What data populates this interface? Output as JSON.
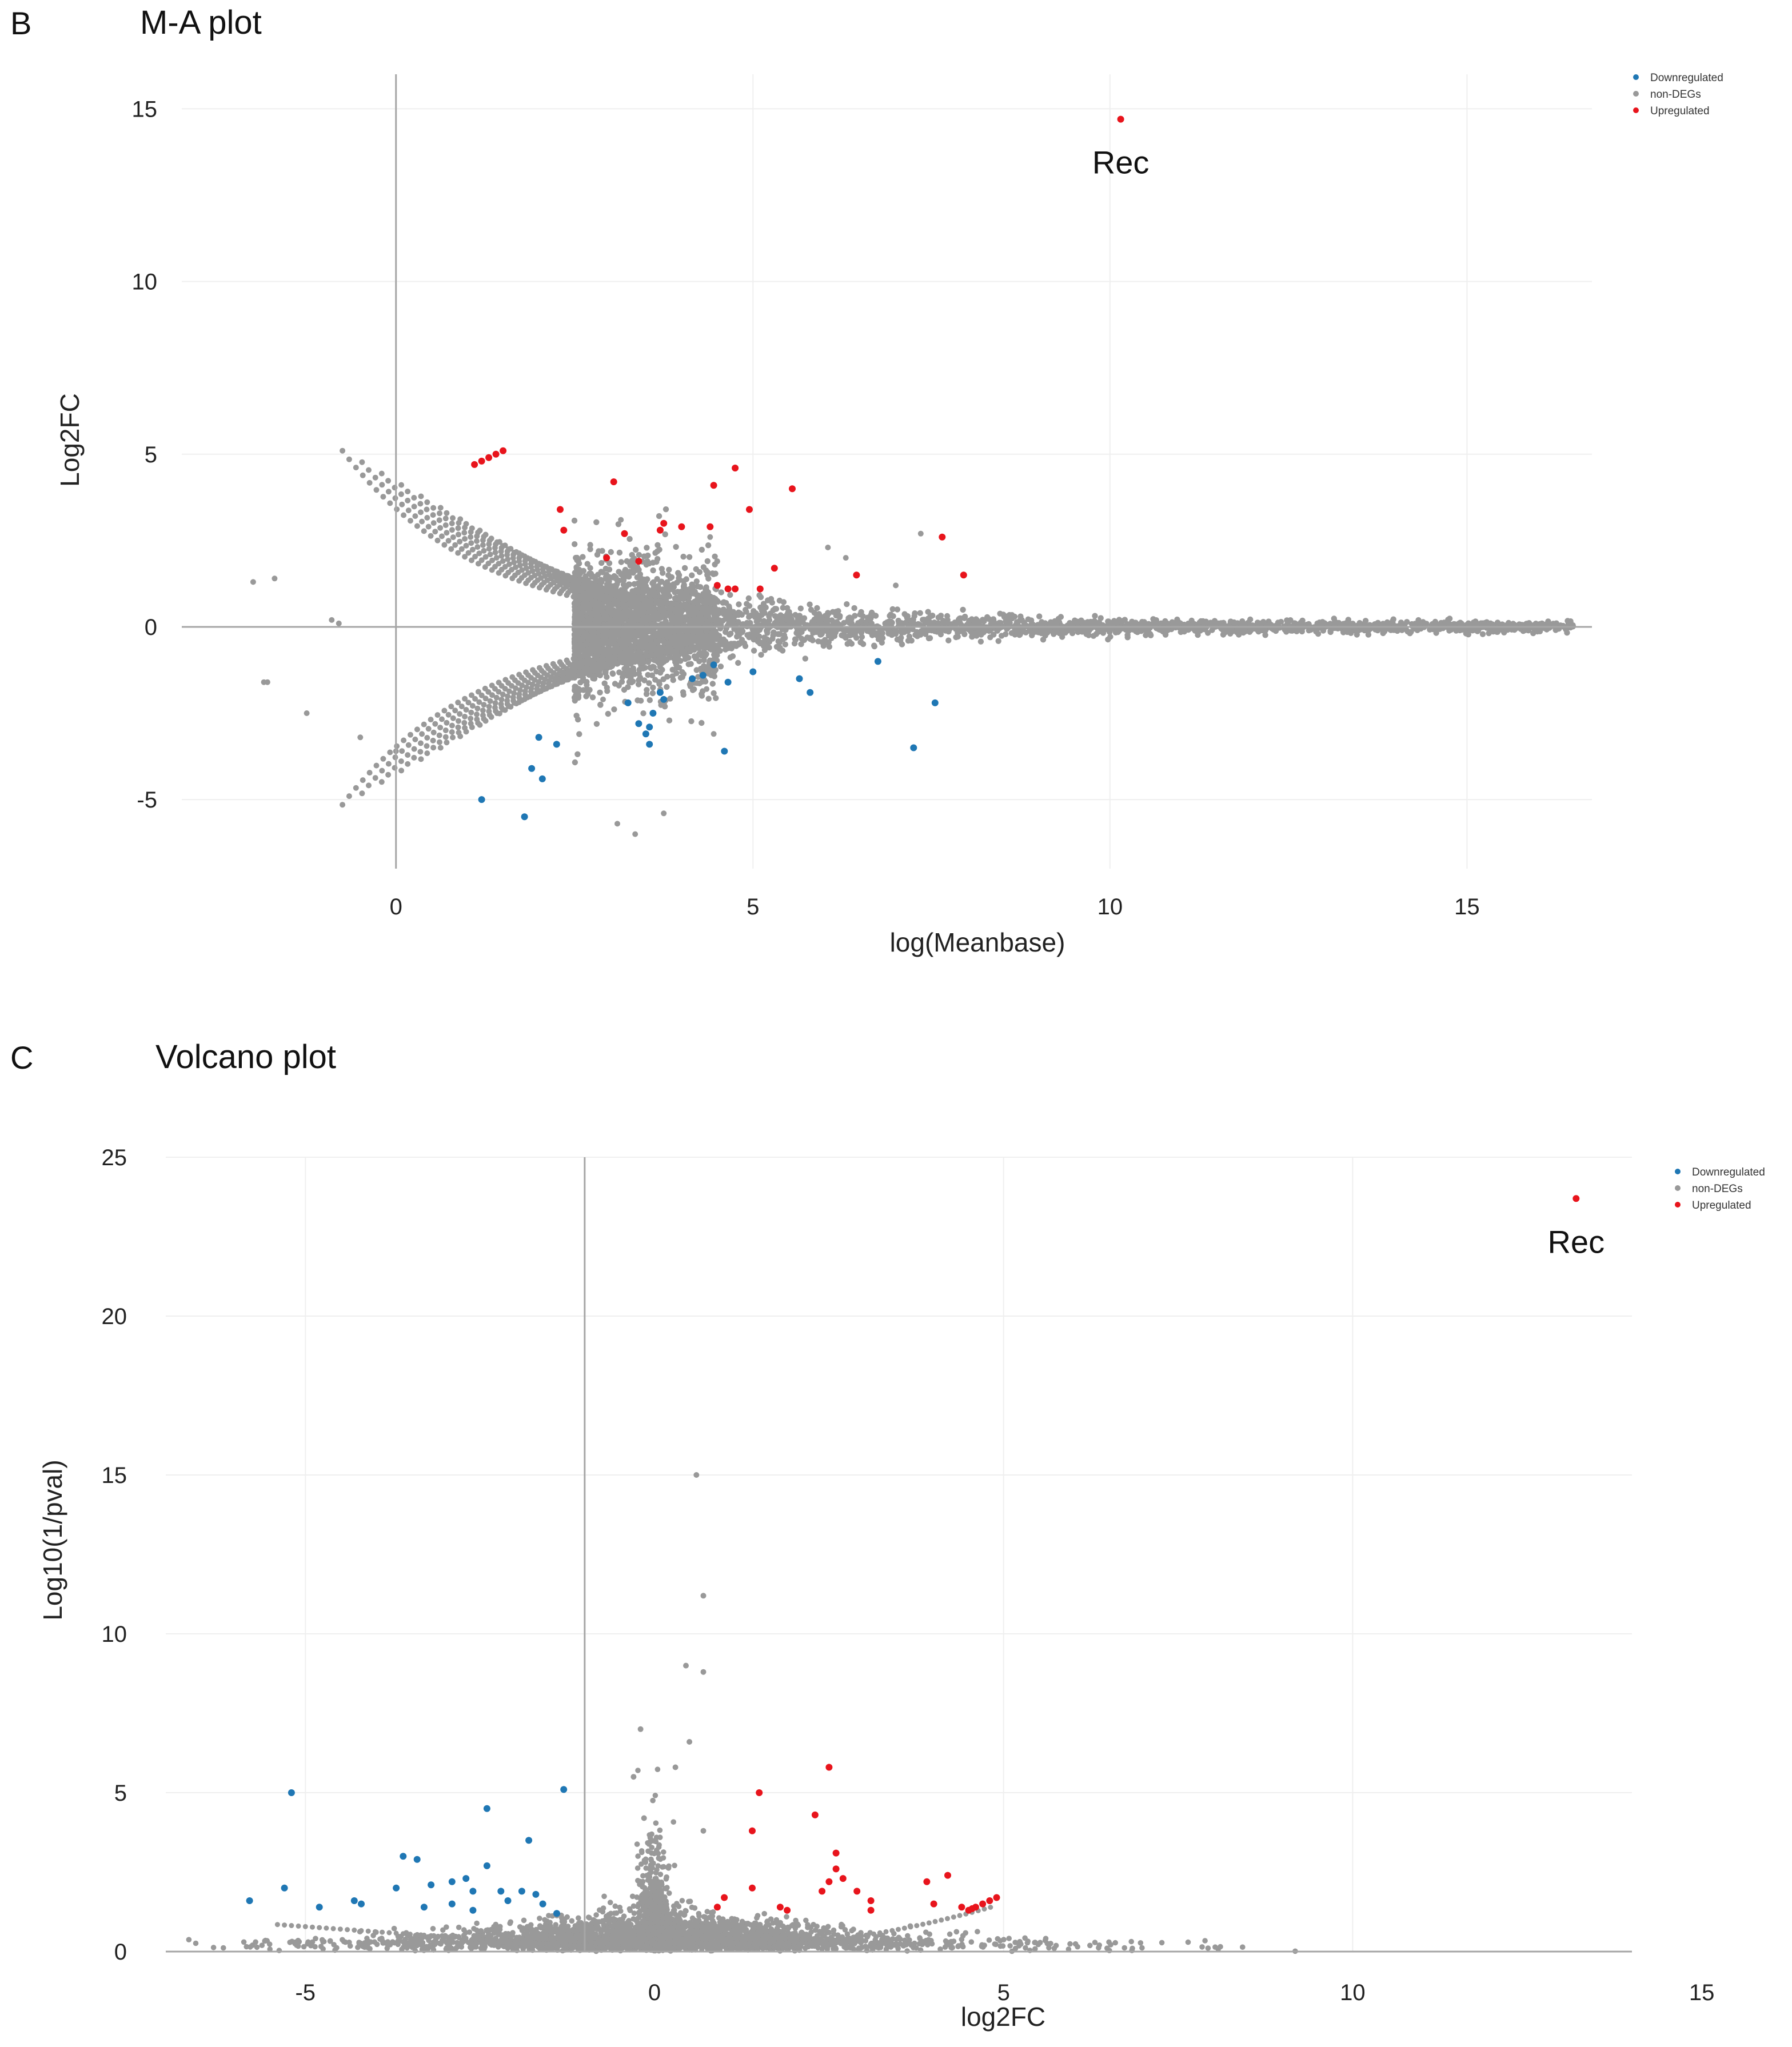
{
  "panels": {
    "b": {
      "letter": "B",
      "title": "M-A plot"
    },
    "c": {
      "letter": "C",
      "title": "Volcano plot"
    }
  },
  "colors": {
    "downregulated": "#1f77b4",
    "non_degs": "#999999",
    "upregulated": "#e8141c",
    "grid": "#efefef",
    "axis": "#a6a6a6"
  },
  "chart_data": [
    {
      "id": "ma",
      "type": "scatter",
      "title": "M-A plot",
      "xlabel": "log(Meanbase)",
      "ylabel": "Log2FC",
      "xlim": [
        -6,
        33.5
      ],
      "ylim": [
        -7,
        16
      ],
      "xticks": [
        0,
        10,
        20,
        30
      ],
      "xtick_labels": [
        "0",
        "5",
        "10",
        "15"
      ],
      "yticks": [
        -5,
        0,
        5,
        10,
        15
      ],
      "ytick_labels": [
        "-5",
        "0",
        "5",
        "10",
        "15"
      ],
      "grid": true,
      "legend": {
        "position": "top-right",
        "entries": [
          "Downregulated",
          "non-DEGs",
          "Upregulated"
        ]
      },
      "annotations": [
        {
          "text": "Rec",
          "x": 20.3,
          "y": 14.7
        }
      ],
      "series": [
        {
          "name": "Upregulated",
          "color_key": "upregulated",
          "points": [
            [
              20.3,
              14.7
            ],
            [
              2.4,
              4.8
            ],
            [
              2.6,
              4.9
            ],
            [
              2.8,
              5.0
            ],
            [
              3.0,
              5.1
            ],
            [
              2.2,
              4.7
            ],
            [
              4.6,
              3.4
            ],
            [
              4.7,
              2.8
            ],
            [
              6.1,
              4.2
            ],
            [
              5.9,
              2.0
            ],
            [
              6.4,
              2.7
            ],
            [
              7.5,
              3.0
            ],
            [
              7.4,
              2.8
            ],
            [
              8.0,
              2.9
            ],
            [
              8.9,
              4.1
            ],
            [
              9.5,
              4.6
            ],
            [
              9.0,
              1.2
            ],
            [
              8.8,
              2.9
            ],
            [
              9.9,
              3.4
            ],
            [
              9.3,
              1.1
            ],
            [
              9.5,
              1.1
            ],
            [
              10.6,
              1.7
            ],
            [
              11.1,
              4.0
            ],
            [
              10.2,
              1.1
            ],
            [
              12.9,
              1.5
            ],
            [
              15.3,
              2.6
            ],
            [
              15.9,
              1.5
            ],
            [
              6.8,
              1.9
            ]
          ]
        },
        {
          "name": "Downregulated",
          "color_key": "downregulated",
          "points": [
            [
              2.4,
              -5.0
            ],
            [
              3.6,
              -5.5
            ],
            [
              3.8,
              -4.1
            ],
            [
              4.1,
              -4.4
            ],
            [
              4.0,
              -3.2
            ],
            [
              4.5,
              -3.4
            ],
            [
              6.5,
              -2.2
            ],
            [
              6.8,
              -2.8
            ],
            [
              7.0,
              -3.1
            ],
            [
              7.1,
              -2.9
            ],
            [
              7.2,
              -2.5
            ],
            [
              7.1,
              -3.4
            ],
            [
              7.5,
              -2.1
            ],
            [
              7.4,
              -1.9
            ],
            [
              8.3,
              -1.5
            ],
            [
              8.6,
              -1.4
            ],
            [
              8.9,
              -1.1
            ],
            [
              9.3,
              -1.6
            ],
            [
              9.2,
              -3.6
            ],
            [
              10.0,
              -1.3
            ],
            [
              11.3,
              -1.5
            ],
            [
              11.6,
              -1.9
            ],
            [
              13.5,
              -1.0
            ],
            [
              14.5,
              -3.5
            ],
            [
              15.1,
              -2.2
            ]
          ]
        }
      ]
    },
    {
      "id": "volcano",
      "type": "scatter",
      "title": "Volcano plot",
      "xlabel": "log2FC",
      "ylabel": "Log10(1/pval)",
      "xlim": [
        -7,
        14
      ],
      "ylim": [
        0,
        25
      ],
      "xticks": [
        -5,
        0,
        5,
        10,
        15
      ],
      "xtick_labels": [
        "-5",
        "0",
        "5",
        "10",
        "15"
      ],
      "yticks": [
        0,
        5,
        10,
        15,
        20,
        25
      ],
      "ytick_labels": [
        "0",
        "5",
        "10",
        "15",
        "20",
        "25"
      ],
      "grid": true,
      "legend": {
        "position": "top-right",
        "entries": [
          "Downregulated",
          "non-DEGs",
          "Upregulated"
        ]
      },
      "annotations": [
        {
          "text": "Rec",
          "x": 13.2,
          "y": 23.7
        }
      ],
      "series": [
        {
          "name": "Upregulated",
          "color_key": "upregulated",
          "points": [
            [
              13.2,
              23.7
            ],
            [
              2.5,
              5.8
            ],
            [
              1.5,
              5.0
            ],
            [
              2.3,
              4.3
            ],
            [
              1.4,
              3.8
            ],
            [
              2.6,
              3.1
            ],
            [
              2.6,
              2.6
            ],
            [
              2.5,
              2.2
            ],
            [
              2.7,
              2.3
            ],
            [
              2.9,
              1.9
            ],
            [
              4.2,
              2.4
            ],
            [
              3.9,
              2.2
            ],
            [
              4.0,
              1.5
            ],
            [
              1.4,
              2.0
            ],
            [
              1.0,
              1.7
            ],
            [
              0.9,
              1.4
            ],
            [
              1.8,
              1.4
            ],
            [
              1.9,
              1.3
            ],
            [
              2.4,
              1.9
            ],
            [
              3.1,
              1.6
            ],
            [
              3.1,
              1.3
            ],
            [
              4.4,
              1.4
            ],
            [
              4.5,
              1.3
            ],
            [
              4.6,
              1.4
            ],
            [
              4.7,
              1.5
            ],
            [
              4.8,
              1.6
            ],
            [
              4.9,
              1.7
            ],
            [
              4.55,
              1.35
            ]
          ]
        },
        {
          "name": "Downregulated",
          "color_key": "downregulated",
          "points": [
            [
              -5.2,
              5.0
            ],
            [
              -2.4,
              4.5
            ],
            [
              -1.3,
              5.1
            ],
            [
              -1.8,
              3.5
            ],
            [
              -2.4,
              2.7
            ],
            [
              -3.6,
              3.0
            ],
            [
              -3.4,
              2.9
            ],
            [
              -3.2,
              2.1
            ],
            [
              -2.9,
              2.2
            ],
            [
              -2.7,
              2.3
            ],
            [
              -5.3,
              2.0
            ],
            [
              -5.8,
              1.6
            ],
            [
              -4.8,
              1.4
            ],
            [
              -4.3,
              1.6
            ],
            [
              -4.2,
              1.5
            ],
            [
              -3.7,
              2.0
            ],
            [
              -3.3,
              1.4
            ],
            [
              -2.9,
              1.5
            ],
            [
              -2.6,
              1.9
            ],
            [
              -2.2,
              1.9
            ],
            [
              -2.1,
              1.6
            ],
            [
              -1.9,
              1.9
            ],
            [
              -1.6,
              1.5
            ],
            [
              -1.7,
              1.8
            ],
            [
              -2.6,
              1.3
            ],
            [
              -1.4,
              1.2
            ]
          ]
        }
      ]
    }
  ]
}
